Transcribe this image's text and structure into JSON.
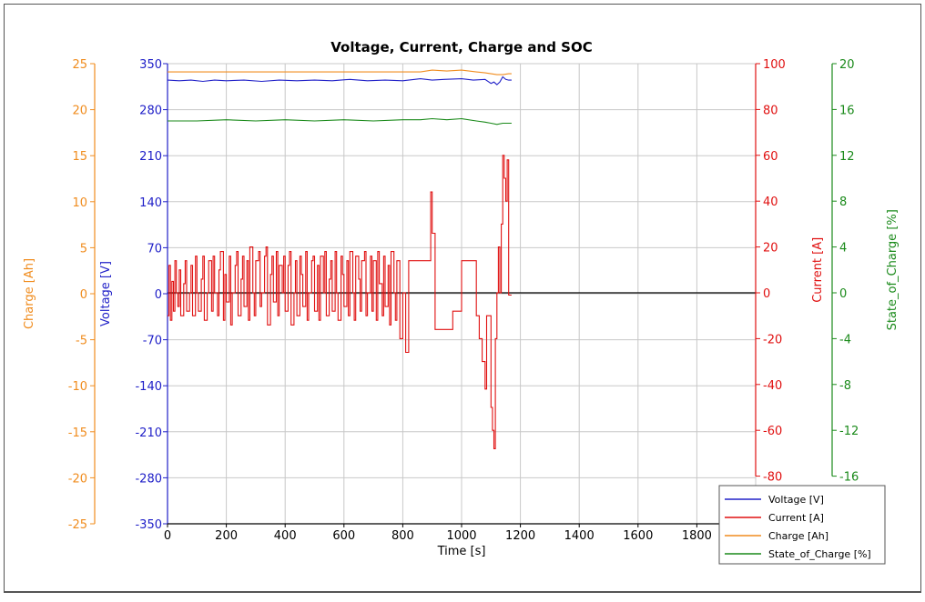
{
  "chart_data": {
    "type": "line",
    "title": "Voltage, Current, Charge and SOC",
    "xlabel": "Time [s]",
    "xlim": [
      0,
      2000
    ],
    "x_ticks": [
      "0",
      "200",
      "400",
      "600",
      "800",
      "1000",
      "1200",
      "1400",
      "1600",
      "1800"
    ],
    "grid": true,
    "legend_position": "bottom-right",
    "axes": [
      {
        "id": "charge",
        "label": "Charge [Ah]",
        "side": "left-outer",
        "color": "#f08c1e",
        "ylim": [
          -25,
          25
        ],
        "ticks": [
          "25",
          "20",
          "15",
          "10",
          "5",
          "0",
          "-5",
          "-10",
          "-15",
          "-20",
          "-25"
        ]
      },
      {
        "id": "voltage",
        "label": "Voltage [V]",
        "side": "left-inner",
        "color": "#2020c8",
        "ylim": [
          -350,
          350
        ],
        "ticks": [
          "350",
          "280",
          "210",
          "140",
          "70",
          "0",
          "-70",
          "-140",
          "-210",
          "-280",
          "-350"
        ]
      },
      {
        "id": "current",
        "label": "Current [A]",
        "side": "right-inner",
        "color": "#e01010",
        "ylim": [
          -80,
          100
        ],
        "ticks": [
          "100",
          "80",
          "60",
          "40",
          "20",
          "0",
          "-20",
          "-40",
          "-60",
          "-80"
        ]
      },
      {
        "id": "soc",
        "label": "State_of_Charge [%]",
        "side": "right-outer",
        "color": "#1a8a1a",
        "ylim": [
          -16,
          20
        ],
        "ticks": [
          "20",
          "16",
          "12",
          "8",
          "4",
          "0",
          "-4",
          "-8",
          "-12",
          "-16"
        ]
      }
    ],
    "series": [
      {
        "name": "Voltage [V]",
        "axis": "voltage",
        "color": "#2020c8",
        "x": [
          0,
          40,
          80,
          120,
          160,
          200,
          260,
          320,
          380,
          440,
          500,
          560,
          620,
          680,
          740,
          800,
          860,
          900,
          940,
          1000,
          1040,
          1080,
          1100,
          1110,
          1120,
          1130,
          1140,
          1150,
          1160,
          1170
        ],
        "y": [
          325,
          324,
          325,
          323,
          325,
          324,
          325,
          323,
          325,
          324,
          325,
          324,
          326,
          324,
          325,
          324,
          327,
          325,
          326,
          327,
          325,
          326,
          320,
          322,
          318,
          322,
          330,
          326,
          325,
          325
        ]
      },
      {
        "name": "Current [A]",
        "axis": "current",
        "color": "#e01010",
        "x": [
          0,
          5,
          10,
          15,
          20,
          25,
          30,
          35,
          40,
          45,
          55,
          60,
          65,
          75,
          80,
          85,
          95,
          100,
          105,
          115,
          120,
          125,
          135,
          140,
          150,
          155,
          160,
          170,
          175,
          180,
          190,
          195,
          200,
          210,
          215,
          220,
          230,
          235,
          240,
          250,
          255,
          260,
          270,
          275,
          280,
          290,
          295,
          300,
          310,
          315,
          320,
          330,
          335,
          340,
          350,
          355,
          360,
          370,
          375,
          380,
          390,
          395,
          400,
          410,
          415,
          420,
          430,
          435,
          440,
          450,
          455,
          460,
          470,
          475,
          480,
          490,
          495,
          500,
          510,
          515,
          520,
          530,
          535,
          540,
          550,
          555,
          560,
          570,
          575,
          580,
          590,
          595,
          600,
          610,
          615,
          620,
          630,
          635,
          640,
          650,
          655,
          660,
          670,
          675,
          680,
          690,
          695,
          700,
          710,
          715,
          720,
          730,
          735,
          740,
          750,
          755,
          760,
          770,
          775,
          780,
          790,
          800,
          810,
          820,
          830,
          840,
          845,
          850,
          860,
          870,
          880,
          890,
          895,
          900,
          910,
          920,
          930,
          940,
          950,
          960,
          970,
          980,
          990,
          1000,
          1010,
          1020,
          1030,
          1040,
          1050,
          1060,
          1070,
          1080,
          1085,
          1090,
          1095,
          1100,
          1105,
          1110,
          1115,
          1120,
          1125,
          1130,
          1135,
          1140,
          1145,
          1150,
          1155,
          1160,
          1170
        ],
        "y": [
          -10,
          12,
          -12,
          5,
          -8,
          14,
          0,
          -6,
          10,
          -10,
          4,
          14,
          -8,
          0,
          12,
          -10,
          16,
          0,
          -8,
          6,
          16,
          -12,
          0,
          14,
          -8,
          16,
          0,
          -10,
          10,
          18,
          -12,
          8,
          -4,
          16,
          -14,
          0,
          12,
          18,
          -10,
          6,
          16,
          -6,
          14,
          -12,
          20,
          0,
          -10,
          14,
          18,
          -6,
          0,
          16,
          20,
          -14,
          8,
          16,
          -4,
          18,
          -10,
          12,
          0,
          16,
          -8,
          12,
          18,
          -14,
          0,
          14,
          -10,
          16,
          8,
          -6,
          18,
          -12,
          0,
          14,
          16,
          -8,
          12,
          -12,
          16,
          0,
          18,
          -10,
          6,
          14,
          -8,
          18,
          0,
          -12,
          16,
          8,
          -6,
          14,
          -10,
          18,
          0,
          -12,
          16,
          6,
          -8,
          14,
          18,
          -10,
          0,
          16,
          -8,
          14,
          -12,
          18,
          4,
          -10,
          16,
          -6,
          12,
          -14,
          18,
          0,
          -12,
          14,
          -20,
          0,
          -26,
          14,
          14,
          14,
          14,
          14,
          14,
          14,
          14,
          14,
          44,
          26,
          -16,
          -16,
          -16,
          -16,
          -16,
          -16,
          -8,
          -8,
          -8,
          14,
          14,
          14,
          14,
          14,
          -10,
          -20,
          -30,
          -42,
          -10,
          -10,
          -10,
          -50,
          -60,
          -68,
          -20,
          0,
          20,
          0,
          30,
          60,
          50,
          40,
          58,
          -1,
          -1
        ]
      },
      {
        "name": "Charge [Ah]",
        "axis": "charge",
        "color": "#f08c1e",
        "x": [
          0,
          100,
          200,
          300,
          400,
          500,
          600,
          700,
          800,
          860,
          900,
          950,
          1000,
          1050,
          1080,
          1100,
          1120,
          1140,
          1160,
          1170
        ],
        "y": [
          24.1,
          24.1,
          24.1,
          24.1,
          24.1,
          24.1,
          24.1,
          24.1,
          24.1,
          24.1,
          24.3,
          24.2,
          24.3,
          24.1,
          24.0,
          23.9,
          23.8,
          23.8,
          23.9,
          23.9
        ]
      },
      {
        "name": "State_of_Charge [%]",
        "axis": "soc",
        "color": "#1a8a1a",
        "x": [
          0,
          100,
          200,
          300,
          400,
          500,
          600,
          700,
          800,
          860,
          900,
          950,
          1000,
          1050,
          1080,
          1100,
          1120,
          1140,
          1160,
          1170
        ],
        "y": [
          15.0,
          15.0,
          15.1,
          15.0,
          15.1,
          15.0,
          15.1,
          15.0,
          15.1,
          15.1,
          15.2,
          15.1,
          15.2,
          15.0,
          14.9,
          14.8,
          14.7,
          14.8,
          14.8,
          14.8
        ]
      }
    ]
  }
}
